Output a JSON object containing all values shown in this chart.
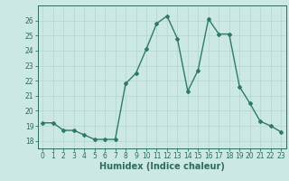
{
  "x": [
    0,
    1,
    2,
    3,
    4,
    5,
    6,
    7,
    8,
    9,
    10,
    11,
    12,
    13,
    14,
    15,
    16,
    17,
    18,
    19,
    20,
    21,
    22,
    23
  ],
  "y": [
    19.2,
    19.2,
    18.7,
    18.7,
    18.4,
    18.1,
    18.1,
    18.1,
    21.8,
    22.5,
    24.1,
    25.8,
    26.3,
    24.8,
    21.3,
    22.7,
    26.1,
    25.1,
    25.1,
    21.6,
    20.5,
    19.3,
    19.0,
    18.6
  ],
  "line_color": "#2d7a6a",
  "marker": "D",
  "markersize": 2.0,
  "linewidth": 1.0,
  "bg_color": "#cce8e4",
  "grid_color": "#b8d8d4",
  "xlabel": "Humidex (Indice chaleur)",
  "xlim": [
    -0.5,
    23.5
  ],
  "ylim": [
    17.5,
    27.0
  ],
  "yticks": [
    18,
    19,
    20,
    21,
    22,
    23,
    24,
    25,
    26
  ],
  "xticks": [
    0,
    1,
    2,
    3,
    4,
    5,
    6,
    7,
    8,
    9,
    10,
    11,
    12,
    13,
    14,
    15,
    16,
    17,
    18,
    19,
    20,
    21,
    22,
    23
  ],
  "tick_fontsize": 5.5,
  "xlabel_fontsize": 7.0,
  "tick_color": "#2d6b5a",
  "axis_color": "#2d6b5a"
}
